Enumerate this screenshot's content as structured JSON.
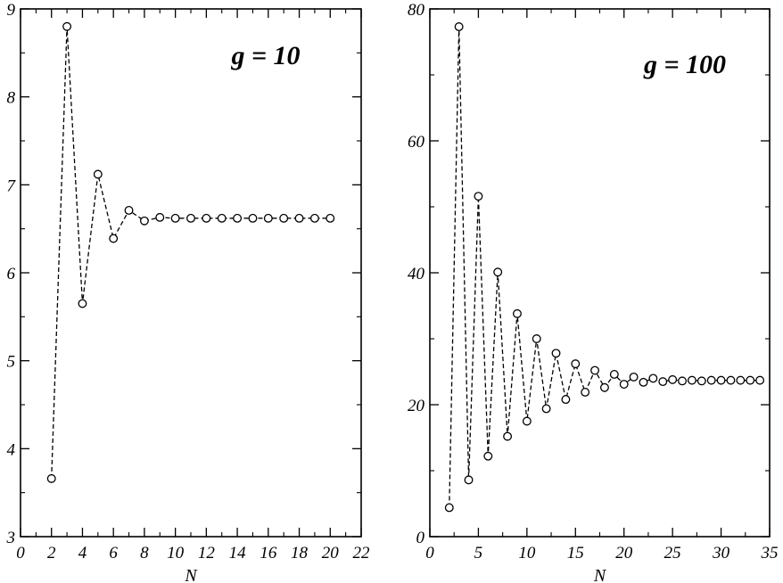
{
  "chart_data": [
    {
      "type": "scatter",
      "annotation": "g = 10",
      "xlabel": "N",
      "ylabel": "",
      "xlim": [
        0,
        22
      ],
      "ylim": [
        3,
        9
      ],
      "xticks": [
        0,
        2,
        4,
        6,
        8,
        10,
        12,
        14,
        16,
        18,
        20,
        22
      ],
      "yticks": [
        3,
        4,
        5,
        6,
        7,
        8,
        9
      ],
      "grid": false,
      "line_style": "dashed",
      "marker": "open-circle",
      "series": [
        {
          "x": [
            2,
            3,
            4,
            5,
            6,
            7,
            8,
            9,
            10,
            11,
            12,
            13,
            14,
            15,
            16,
            17,
            18,
            19,
            20
          ],
          "y": [
            3.66,
            8.8,
            5.65,
            7.12,
            6.39,
            6.71,
            6.59,
            6.63,
            6.62,
            6.62,
            6.62,
            6.62,
            6.62,
            6.62,
            6.62,
            6.62,
            6.62,
            6.62,
            6.62
          ]
        }
      ]
    },
    {
      "type": "scatter",
      "annotation": "g = 100",
      "xlabel": "N",
      "ylabel": "",
      "xlim": [
        0,
        35
      ],
      "ylim": [
        0,
        80
      ],
      "xticks": [
        0,
        5,
        10,
        15,
        20,
        25,
        30,
        35
      ],
      "yticks": [
        0,
        20,
        40,
        60,
        80
      ],
      "grid": false,
      "line_style": "dashed",
      "marker": "open-circle",
      "series": [
        {
          "x": [
            2,
            3,
            4,
            5,
            6,
            7,
            8,
            9,
            10,
            11,
            12,
            13,
            14,
            15,
            16,
            17,
            18,
            19,
            20,
            21,
            22,
            23,
            24,
            25,
            26,
            27,
            28,
            29,
            30,
            31,
            32,
            33,
            34
          ],
          "y": [
            4.4,
            77.3,
            8.6,
            51.6,
            12.2,
            40.1,
            15.2,
            33.8,
            17.5,
            30.0,
            19.4,
            27.8,
            20.8,
            26.2,
            21.9,
            25.2,
            22.6,
            24.6,
            23.1,
            24.2,
            23.4,
            24.0,
            23.5,
            23.8,
            23.6,
            23.7,
            23.6,
            23.7,
            23.7,
            23.7,
            23.7,
            23.7,
            23.7
          ]
        }
      ]
    }
  ]
}
